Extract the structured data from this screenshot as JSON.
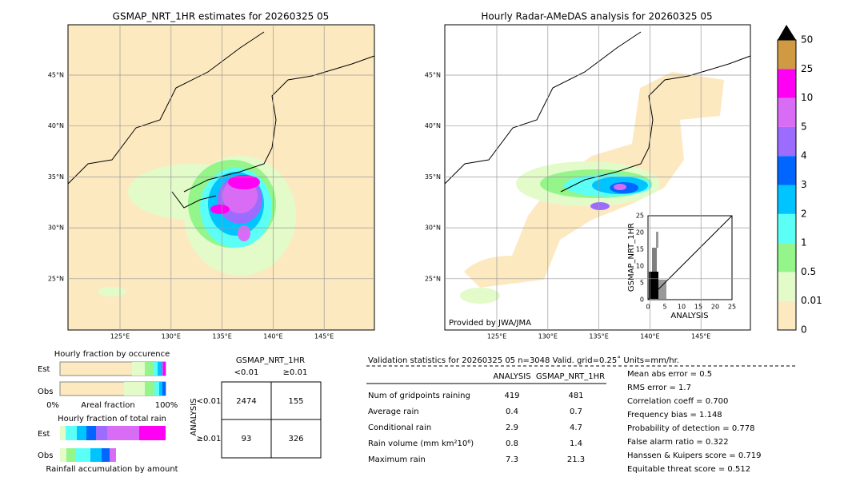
{
  "left_map": {
    "title": "GSMAP_NRT_1HR estimates for 20260325 05",
    "lat_labels": [
      "45°N",
      "40°N",
      "35°N",
      "30°N",
      "25°N"
    ],
    "lon_labels": [
      "125°E",
      "130°E",
      "135°E",
      "140°E",
      "145°E"
    ]
  },
  "right_map": {
    "title": "Hourly Radar-AMeDAS analysis for 20260325 05",
    "lat_labels": [
      "45°N",
      "40°N",
      "35°N",
      "30°N",
      "25°N"
    ],
    "lon_labels": [
      "125°E",
      "130°E",
      "135°E",
      "140°E",
      "145°E"
    ],
    "credit": "Provided by JWA/JMA",
    "inset": {
      "ylabel": "GSMAP_NRT_1HR",
      "xlabel": "ANALYSIS",
      "ticks": [
        "0",
        "5",
        "10",
        "15",
        "20",
        "25"
      ]
    }
  },
  "colorbar": {
    "levels": [
      "0",
      "0.01",
      "0.5",
      "1",
      "2",
      "3",
      "4",
      "5",
      "10",
      "25",
      "50"
    ],
    "colors": [
      "#fde9c0",
      "#e2fbc9",
      "#93f58a",
      "#5cfff5",
      "#00c4ff",
      "#0066ff",
      "#9c6cff",
      "#d86cf5",
      "#ff00f5",
      "#cf9a42"
    ]
  },
  "fraction": {
    "occurrence_title": "Hourly fraction by occurence",
    "rows": [
      "Est",
      "Obs"
    ],
    "axis": [
      "0%",
      "Areal fraction",
      "100%"
    ],
    "total_title": "Hourly fraction of total rain",
    "total_rows": [
      "Est",
      "Obs"
    ],
    "amount_label": "Rainfall accumulation by amount"
  },
  "contingency": {
    "title": "GSMAP_NRT_1HR",
    "cols": [
      "<0.01",
      "≥0.01"
    ],
    "axis": "ANALYSIS",
    "rows": [
      "<0.01",
      "≥0.01"
    ],
    "cells": [
      [
        "2474",
        "155"
      ],
      [
        "93",
        "326"
      ]
    ]
  },
  "validation": {
    "header": "Validation statistics for 20260325 05  n=3048 Valid. grid=0.25˚ Units=mm/hr.",
    "columns": [
      "ANALYSIS",
      "GSMAP_NRT_1HR"
    ],
    "rows": [
      [
        "Num of gridpoints raining",
        "419",
        "481"
      ],
      [
        "Average rain",
        "0.4",
        "0.7"
      ],
      [
        "Conditional rain",
        "2.9",
        "4.7"
      ],
      [
        "Rain volume (mm km²10⁶)",
        "0.8",
        "1.4"
      ],
      [
        "Maximum rain",
        "7.3",
        "21.3"
      ]
    ],
    "scores": [
      "Mean abs error =    0.5",
      "RMS error =    1.7",
      "Correlation coeff =  0.700",
      "Frequency bias =  1.148",
      "Probability of detection =  0.778",
      "False alarm ratio =  0.322",
      "Hanssen & Kuipers score =  0.719",
      "Equitable threat score =  0.512"
    ]
  }
}
